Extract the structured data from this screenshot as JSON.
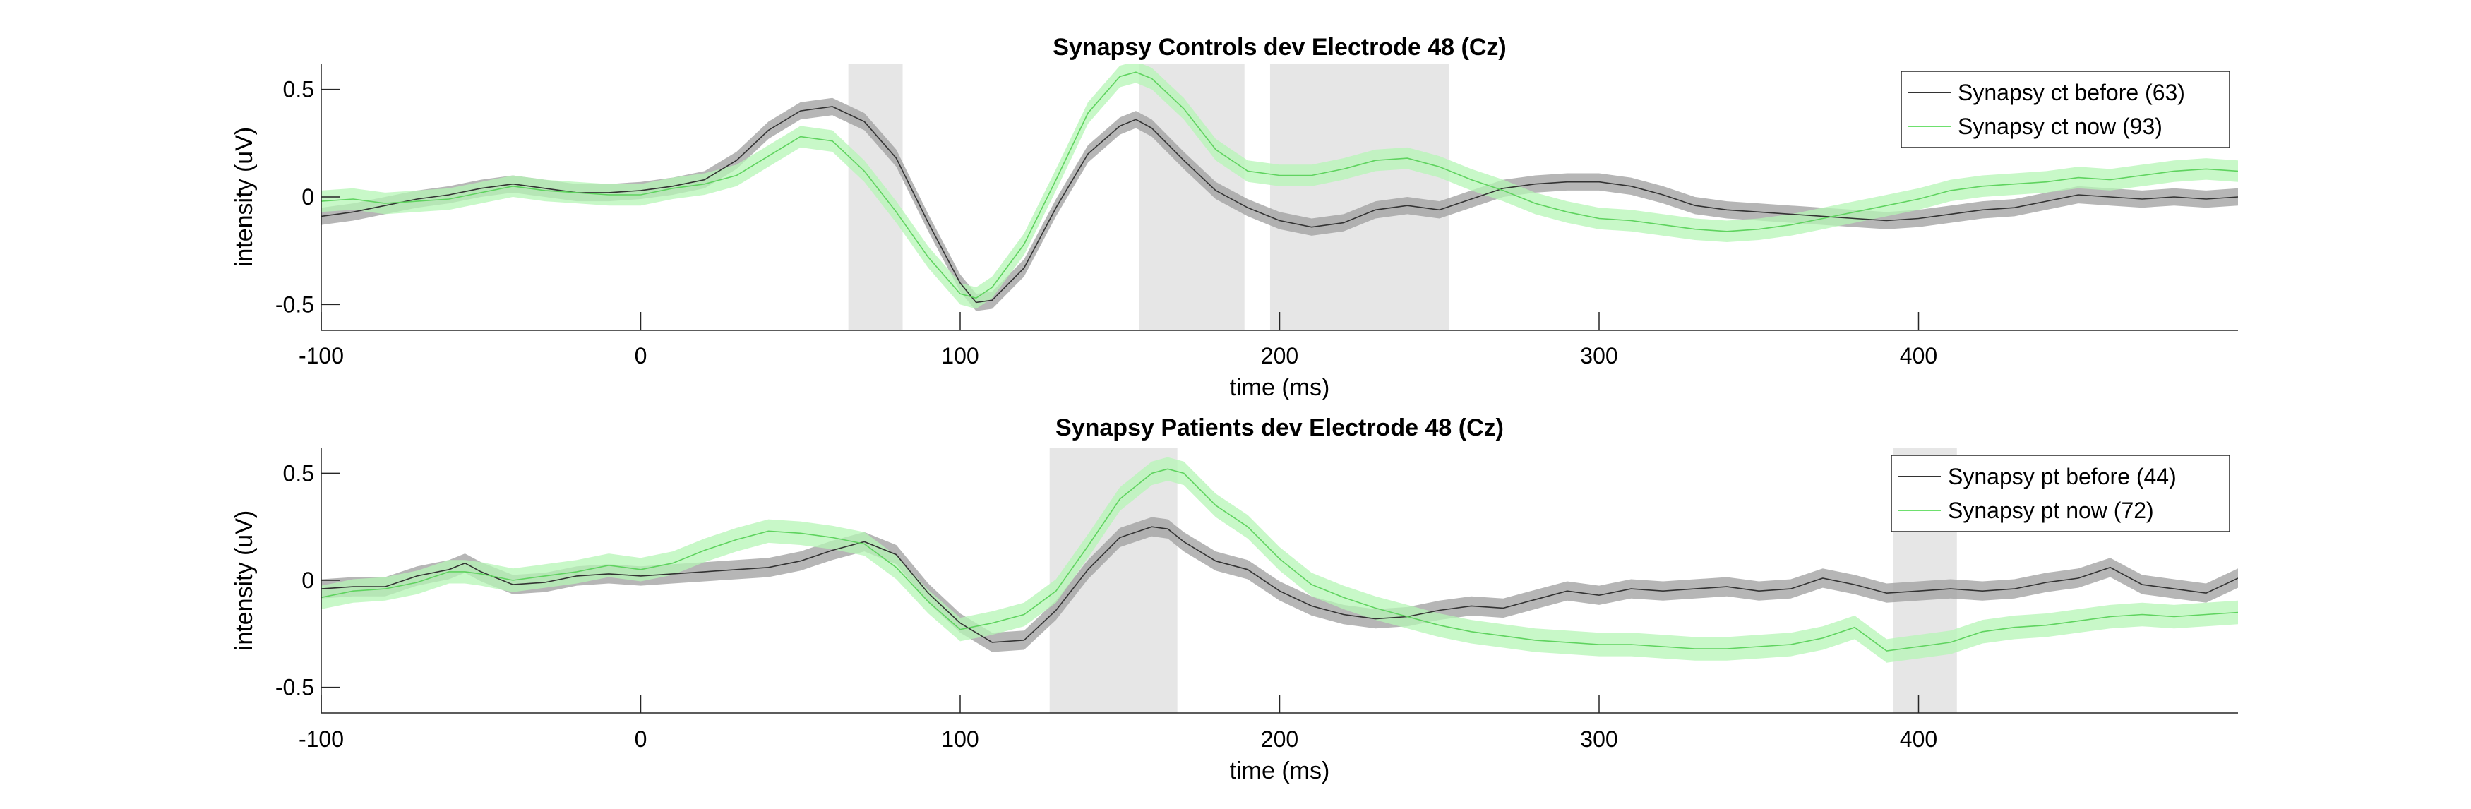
{
  "chart_data": [
    {
      "type": "line",
      "title": "Synapsy Controls dev Electrode 48 (Cz)",
      "xlabel": "time (ms)",
      "ylabel": "intensity (uV)",
      "xlim": [
        -100,
        500
      ],
      "ylim": [
        -0.62,
        0.62
      ],
      "xticks": [
        -100,
        0,
        100,
        200,
        300,
        400
      ],
      "yticks": [
        -0.5,
        0,
        0.5
      ],
      "ytick_labels": [
        "-0.5",
        "0",
        "0.5"
      ],
      "grid": false,
      "legend_position": "top-right",
      "highlight_intervals": [
        [
          65,
          82
        ],
        [
          156,
          189
        ],
        [
          197,
          253
        ]
      ],
      "series": [
        {
          "name": "Synapsy ct before (63)",
          "color": "#3a3a3a",
          "band_color": "#9e9e9e",
          "x": [
            -100,
            -90,
            -80,
            -70,
            -60,
            -50,
            -40,
            -30,
            -20,
            -10,
            0,
            10,
            20,
            30,
            40,
            50,
            60,
            70,
            80,
            90,
            100,
            105,
            110,
            120,
            130,
            140,
            150,
            155,
            160,
            170,
            180,
            190,
            200,
            210,
            220,
            230,
            240,
            250,
            260,
            270,
            280,
            290,
            300,
            310,
            320,
            330,
            340,
            350,
            360,
            370,
            380,
            390,
            400,
            410,
            420,
            430,
            440,
            450,
            460,
            470,
            480,
            490,
            500
          ],
          "y": [
            -0.09,
            -0.07,
            -0.04,
            -0.01,
            0.01,
            0.04,
            0.06,
            0.04,
            0.02,
            0.02,
            0.03,
            0.05,
            0.08,
            0.17,
            0.31,
            0.4,
            0.42,
            0.35,
            0.18,
            -0.12,
            -0.4,
            -0.49,
            -0.48,
            -0.33,
            -0.05,
            0.2,
            0.33,
            0.36,
            0.32,
            0.17,
            0.03,
            -0.05,
            -0.11,
            -0.14,
            -0.12,
            -0.06,
            -0.04,
            -0.06,
            -0.01,
            0.04,
            0.06,
            0.07,
            0.07,
            0.05,
            0.01,
            -0.04,
            -0.06,
            -0.07,
            -0.08,
            -0.09,
            -0.1,
            -0.11,
            -0.1,
            -0.08,
            -0.06,
            -0.05,
            -0.02,
            0.01,
            0.0,
            -0.01,
            0.0,
            -0.01,
            0.0
          ],
          "band": 0.04
        },
        {
          "name": "Synapsy ct now (93)",
          "color": "#8ef78e",
          "band_color": "#b6f5b6",
          "x": [
            -100,
            -90,
            -80,
            -70,
            -60,
            -50,
            -40,
            -30,
            -20,
            -10,
            0,
            10,
            20,
            30,
            40,
            50,
            60,
            70,
            80,
            90,
            100,
            105,
            110,
            120,
            130,
            140,
            150,
            155,
            160,
            170,
            180,
            190,
            200,
            210,
            220,
            230,
            240,
            250,
            260,
            270,
            280,
            290,
            300,
            310,
            320,
            330,
            340,
            350,
            360,
            370,
            380,
            390,
            400,
            410,
            420,
            430,
            440,
            450,
            460,
            470,
            480,
            490,
            500
          ],
          "y": [
            -0.02,
            -0.01,
            -0.03,
            -0.02,
            -0.01,
            0.02,
            0.05,
            0.03,
            0.02,
            0.01,
            0.01,
            0.04,
            0.06,
            0.1,
            0.19,
            0.28,
            0.26,
            0.12,
            -0.07,
            -0.28,
            -0.45,
            -0.47,
            -0.42,
            -0.22,
            0.08,
            0.39,
            0.56,
            0.58,
            0.55,
            0.41,
            0.22,
            0.12,
            0.1,
            0.1,
            0.13,
            0.17,
            0.18,
            0.14,
            0.08,
            0.03,
            -0.03,
            -0.07,
            -0.1,
            -0.11,
            -0.13,
            -0.15,
            -0.16,
            -0.15,
            -0.13,
            -0.1,
            -0.07,
            -0.04,
            -0.01,
            0.03,
            0.05,
            0.06,
            0.07,
            0.09,
            0.08,
            0.1,
            0.12,
            0.13,
            0.12
          ],
          "band": 0.05
        }
      ]
    },
    {
      "type": "line",
      "title": "Synapsy Patients dev Electrode 48 (Cz)",
      "xlabel": "time (ms)",
      "ylabel": "intensity (uV)",
      "xlim": [
        -100,
        500
      ],
      "ylim": [
        -0.62,
        0.62
      ],
      "xticks": [
        -100,
        0,
        100,
        200,
        300,
        400
      ],
      "yticks": [
        -0.5,
        0,
        0.5
      ],
      "ytick_labels": [
        "-0.5",
        "0",
        "0.5"
      ],
      "grid": false,
      "legend_position": "top-right",
      "highlight_intervals": [
        [
          128,
          168
        ],
        [
          392,
          412
        ]
      ],
      "series": [
        {
          "name": "Synapsy pt before (44)",
          "color": "#3a3a3a",
          "band_color": "#9e9e9e",
          "x": [
            -100,
            -90,
            -80,
            -70,
            -60,
            -55,
            -50,
            -40,
            -30,
            -20,
            -10,
            0,
            10,
            20,
            30,
            40,
            50,
            60,
            70,
            80,
            90,
            100,
            110,
            120,
            130,
            140,
            150,
            160,
            165,
            170,
            180,
            190,
            200,
            210,
            220,
            230,
            240,
            250,
            260,
            270,
            280,
            290,
            300,
            310,
            320,
            330,
            340,
            350,
            360,
            370,
            380,
            390,
            400,
            410,
            420,
            430,
            440,
            450,
            460,
            470,
            480,
            490,
            500
          ],
          "y": [
            -0.04,
            -0.03,
            -0.03,
            0.02,
            0.05,
            0.08,
            0.04,
            -0.02,
            -0.01,
            0.02,
            0.03,
            0.02,
            0.03,
            0.04,
            0.05,
            0.06,
            0.09,
            0.14,
            0.18,
            0.12,
            -0.06,
            -0.2,
            -0.29,
            -0.28,
            -0.14,
            0.05,
            0.2,
            0.25,
            0.24,
            0.18,
            0.09,
            0.05,
            -0.05,
            -0.12,
            -0.16,
            -0.18,
            -0.17,
            -0.14,
            -0.12,
            -0.13,
            -0.09,
            -0.05,
            -0.07,
            -0.04,
            -0.05,
            -0.04,
            -0.03,
            -0.05,
            -0.04,
            0.01,
            -0.02,
            -0.06,
            -0.05,
            -0.04,
            -0.05,
            -0.04,
            -0.01,
            0.01,
            0.06,
            -0.02,
            -0.04,
            -0.06,
            0.01
          ],
          "band": 0.045
        },
        {
          "name": "Synapsy pt now (72)",
          "color": "#8ef78e",
          "band_color": "#b6f5b6",
          "x": [
            -100,
            -90,
            -80,
            -70,
            -60,
            -55,
            -50,
            -40,
            -30,
            -20,
            -10,
            0,
            10,
            20,
            30,
            40,
            50,
            60,
            70,
            80,
            90,
            100,
            110,
            120,
            130,
            140,
            150,
            160,
            165,
            170,
            180,
            190,
            200,
            210,
            220,
            230,
            240,
            250,
            260,
            270,
            280,
            290,
            300,
            310,
            320,
            330,
            340,
            350,
            360,
            370,
            380,
            390,
            400,
            410,
            420,
            430,
            440,
            450,
            460,
            470,
            480,
            490,
            500
          ],
          "y": [
            -0.08,
            -0.05,
            -0.04,
            -0.01,
            0.04,
            0.04,
            0.03,
            0.0,
            0.02,
            0.04,
            0.07,
            0.05,
            0.08,
            0.14,
            0.19,
            0.23,
            0.22,
            0.2,
            0.17,
            0.06,
            -0.1,
            -0.23,
            -0.2,
            -0.16,
            -0.05,
            0.16,
            0.38,
            0.5,
            0.52,
            0.5,
            0.35,
            0.25,
            0.1,
            -0.02,
            -0.08,
            -0.13,
            -0.17,
            -0.21,
            -0.24,
            -0.26,
            -0.28,
            -0.29,
            -0.3,
            -0.3,
            -0.31,
            -0.32,
            -0.32,
            -0.31,
            -0.3,
            -0.27,
            -0.22,
            -0.33,
            -0.31,
            -0.29,
            -0.24,
            -0.22,
            -0.21,
            -0.19,
            -0.17,
            -0.16,
            -0.17,
            -0.16,
            -0.15
          ],
          "band": 0.055
        }
      ]
    }
  ]
}
